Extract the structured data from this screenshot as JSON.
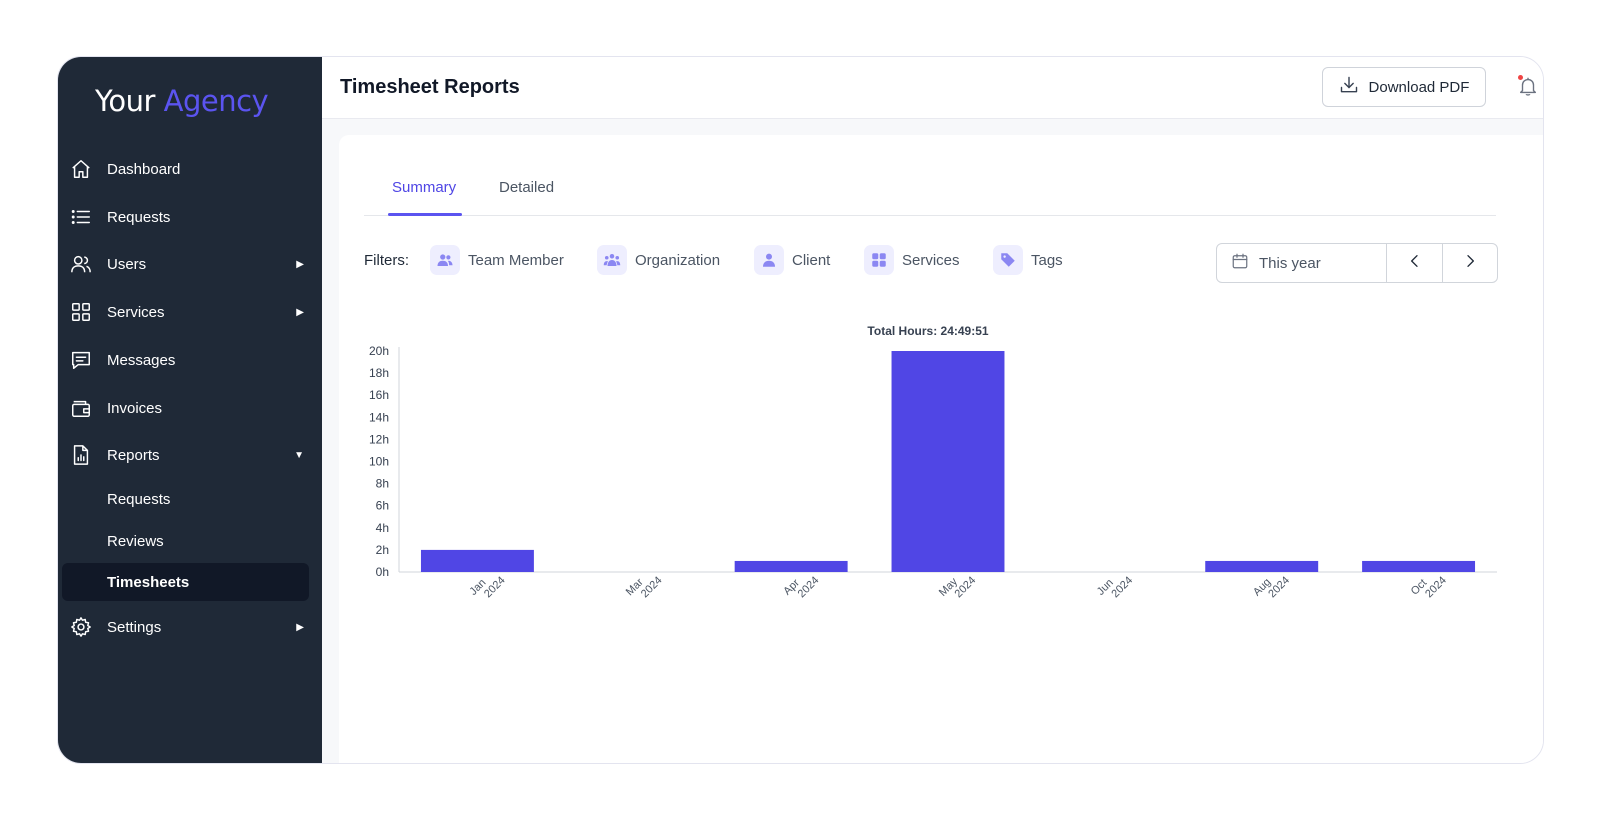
{
  "brand": {
    "name_main": "Your",
    "name_accent": "Agency",
    "accent_color": "#5b54f0"
  },
  "sidebar": {
    "items": [
      {
        "label": "Dashboard",
        "icon": "home-icon"
      },
      {
        "label": "Requests",
        "icon": "list-icon"
      },
      {
        "label": "Users",
        "icon": "users-icon",
        "arrow": "▶"
      },
      {
        "label": "Services",
        "icon": "grid-icon",
        "arrow": "▶"
      },
      {
        "label": "Messages",
        "icon": "message-icon"
      },
      {
        "label": "Invoices",
        "icon": "wallet-icon"
      },
      {
        "label": "Reports",
        "icon": "report-icon",
        "arrow": "▼"
      },
      {
        "label": "Settings",
        "icon": "gear-icon",
        "arrow": "▶"
      }
    ],
    "report_subitems": [
      {
        "label": "Requests"
      },
      {
        "label": "Reviews"
      },
      {
        "label": "Timesheets",
        "active": true
      }
    ]
  },
  "header": {
    "title": "Timesheet Reports",
    "download_label": "Download PDF"
  },
  "tabs": [
    {
      "label": "Summary",
      "active": true
    },
    {
      "label": "Detailed"
    }
  ],
  "filters": {
    "label": "Filters:",
    "items": [
      {
        "label": "Team Member",
        "icon": "team-icon"
      },
      {
        "label": "Organization",
        "icon": "organization-icon"
      },
      {
        "label": "Client",
        "icon": "client-icon"
      },
      {
        "label": "Services",
        "icon": "services-icon"
      },
      {
        "label": "Tags",
        "icon": "tag-icon"
      }
    ],
    "date_range": "This year"
  },
  "chart_data": {
    "type": "bar",
    "title": "Total Hours: 24:49:51",
    "categories": [
      [
        "Jan",
        "2024"
      ],
      [
        "Mar",
        "2024"
      ],
      [
        "Apr",
        "2024"
      ],
      [
        "May",
        "2024"
      ],
      [
        "Jun",
        "2024"
      ],
      [
        "Aug",
        "2024"
      ],
      [
        "Oct",
        "2024"
      ]
    ],
    "values": [
      2,
      0,
      1,
      20,
      0,
      1,
      1
    ],
    "yticks": [
      "0h",
      "2h",
      "4h",
      "6h",
      "8h",
      "10h",
      "12h",
      "14h",
      "16h",
      "18h",
      "20h"
    ],
    "ylim": [
      0,
      20
    ],
    "bar_color": "#5046e5",
    "grid": false
  }
}
